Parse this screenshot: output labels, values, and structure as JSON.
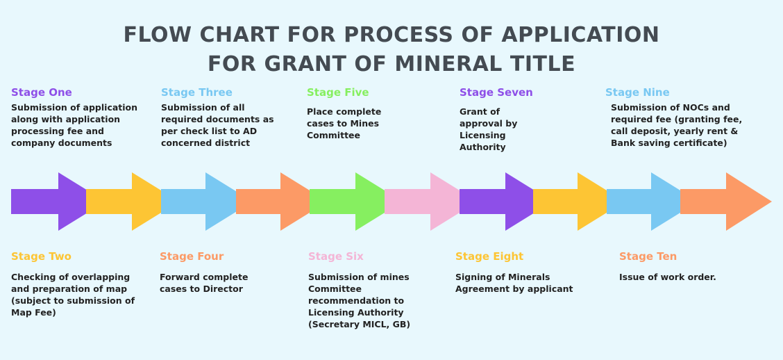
{
  "title_line1": "FLOW CHART FOR PROCESS OF APPLICATION",
  "title_line2": "FOR GRANT OF MINERAL TITLE",
  "colors": {
    "purple": "#8e4fe8",
    "yellow": "#fdc534",
    "blue": "#79c8f2",
    "orange": "#fc9a66",
    "green": "#86ef60",
    "pink": "#f4b5d6"
  },
  "stages": {
    "one": {
      "name": "Stage One",
      "desc": "Submission of application along with application processing fee and company documents",
      "color": "#8e4fe8"
    },
    "two": {
      "name": "Stage Two",
      "desc": "Checking of overlapping and preparation of map (subject to submission of Map Fee)",
      "color": "#fdc534"
    },
    "three": {
      "name": "Stage Three",
      "desc": "Submission of all required documents as per check list to AD concerned district",
      "color": "#79c8f2"
    },
    "four": {
      "name": "Stage Four",
      "desc": "Forward complete cases to Director",
      "color": "#fc9a66"
    },
    "five": {
      "name": "Stage Five",
      "desc": "Place complete cases to Mines Committee",
      "color": "#86ef60"
    },
    "six": {
      "name": "Stage Six",
      "desc": "Submission of mines Committee recommendation to Licensing Authority (Secretary MICL, GB)",
      "color": "#f4b5d6"
    },
    "seven": {
      "name": "Stage Seven",
      "desc": "Grant of approval by Licensing Authority",
      "color": "#8e4fe8"
    },
    "eight": {
      "name": "Stage Eight",
      "desc": "Signing of Minerals Agreement by applicant",
      "color": "#fdc534"
    },
    "nine": {
      "name": "Stage Nine",
      "desc": "Submission of NOCs and required fee (granting fee, call deposit, yearly rent & Bank saving certificate)",
      "color": "#79c8f2"
    },
    "ten": {
      "name": "Stage Ten",
      "desc": "Issue of work order.",
      "color": "#fc9a66"
    }
  }
}
